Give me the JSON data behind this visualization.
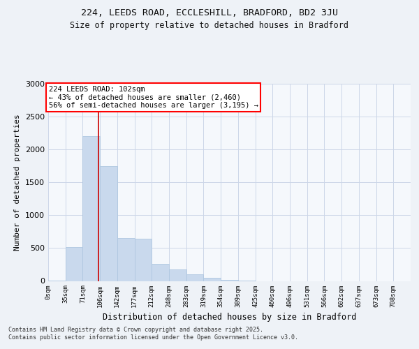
{
  "title1": "224, LEEDS ROAD, ECCLESHILL, BRADFORD, BD2 3JU",
  "title2": "Size of property relative to detached houses in Bradford",
  "xlabel": "Distribution of detached houses by size in Bradford",
  "ylabel": "Number of detached properties",
  "bar_labels": [
    "0sqm",
    "35sqm",
    "71sqm",
    "106sqm",
    "142sqm",
    "177sqm",
    "212sqm",
    "248sqm",
    "283sqm",
    "319sqm",
    "354sqm",
    "389sqm",
    "425sqm",
    "460sqm",
    "496sqm",
    "531sqm",
    "566sqm",
    "602sqm",
    "637sqm",
    "673sqm",
    "708sqm"
  ],
  "bar_values": [
    5,
    510,
    2200,
    1750,
    650,
    640,
    260,
    175,
    100,
    45,
    20,
    5,
    0,
    0,
    0,
    0,
    0,
    0,
    0,
    0,
    0
  ],
  "bar_color": "#c9d9ed",
  "bar_edgecolor": "#afc7e0",
  "property_line_color": "#cc0000",
  "annotation_text": "224 LEEDS ROAD: 102sqm\n← 43% of detached houses are smaller (2,460)\n56% of semi-detached houses are larger (3,195) →",
  "ylim": [
    0,
    3000
  ],
  "yticks": [
    0,
    500,
    1000,
    1500,
    2000,
    2500,
    3000
  ],
  "footer_text": "Contains HM Land Registry data © Crown copyright and database right 2025.\nContains public sector information licensed under the Open Government Licence v3.0.",
  "bg_color": "#eef2f7",
  "plot_bg_color": "#f5f8fc",
  "grid_color": "#ccd6e8",
  "bin_width": 35,
  "num_bins": 21,
  "property_sqm": 102
}
